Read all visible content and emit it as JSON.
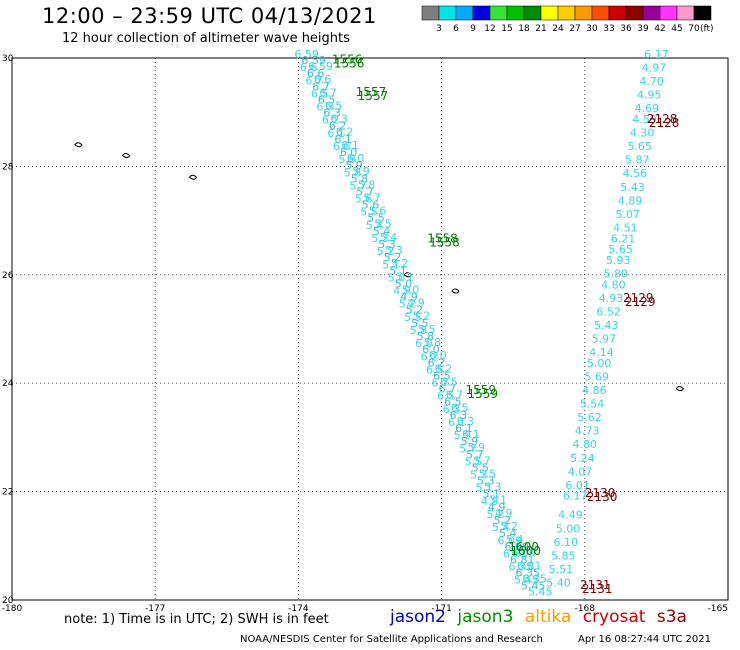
{
  "header": {
    "title": "12:00 – 23:59 UTC 04/13/2021",
    "subtitle": "12 hour collection of altimeter wave heights"
  },
  "colorbar": {
    "colors": [
      "#7f7f7f",
      "#00e6e6",
      "#00aaff",
      "#0000e6",
      "#33e633",
      "#00c000",
      "#008c00",
      "#ffff00",
      "#ffcc00",
      "#ff9900",
      "#ff4c00",
      "#cc0000",
      "#8c0000",
      "#990099",
      "#ff33ff",
      "#ff99cc",
      "#000000"
    ],
    "labels": [
      "3",
      "6",
      "9",
      "12",
      "15",
      "18",
      "21",
      "24",
      "27",
      "30",
      "33",
      "36",
      "39",
      "42",
      "45",
      "70"
    ],
    "unit": "(ft)"
  },
  "chart_data": {
    "type": "scatter",
    "xlim": [
      -180,
      -165
    ],
    "ylim": [
      20,
      30
    ],
    "x_ticks": [
      "-180",
      "-177",
      "-174",
      "-171",
      "-168",
      "-165"
    ],
    "y_ticks": [
      "20",
      "22",
      "24",
      "26",
      "28",
      "30"
    ],
    "grid": true,
    "pass_labels": [
      {
        "label": "1556",
        "x": -173.3,
        "y": 29.9
      },
      {
        "label": "1557",
        "x": -172.8,
        "y": 29.3
      },
      {
        "label": "1558",
        "x": -171.3,
        "y": 26.6
      },
      {
        "label": "1559",
        "x": -170.5,
        "y": 23.8
      },
      {
        "label": "1600",
        "x": -169.6,
        "y": 20.9
      },
      {
        "label": "2128",
        "x": -166.7,
        "y": 28.8
      },
      {
        "label": "2129",
        "x": -167.2,
        "y": 25.5
      },
      {
        "label": "2130",
        "x": -168.0,
        "y": 21.9
      },
      {
        "label": "2131",
        "x": -168.1,
        "y": 20.2
      }
    ],
    "track_east": [
      {
        "x": -166.5,
        "y": 30.0,
        "v": "6.17"
      },
      {
        "x": -166.55,
        "y": 29.75,
        "v": "4.97"
      },
      {
        "x": -166.6,
        "y": 29.5,
        "v": "4.70"
      },
      {
        "x": -166.65,
        "y": 29.25,
        "v": "4.95"
      },
      {
        "x": -166.7,
        "y": 29.0,
        "v": "4.69"
      },
      {
        "x": -166.75,
        "y": 28.8,
        "v": "4.59"
      },
      {
        "x": -166.8,
        "y": 28.55,
        "v": "4.30"
      },
      {
        "x": -166.85,
        "y": 28.3,
        "v": "5.65"
      },
      {
        "x": -166.9,
        "y": 28.05,
        "v": "5.87"
      },
      {
        "x": -166.95,
        "y": 27.8,
        "v": "4.56"
      },
      {
        "x": -167.0,
        "y": 27.55,
        "v": "5.43"
      },
      {
        "x": -167.05,
        "y": 27.3,
        "v": "4.89"
      },
      {
        "x": -167.1,
        "y": 27.05,
        "v": "5.07"
      },
      {
        "x": -167.15,
        "y": 26.8,
        "v": "4.51"
      },
      {
        "x": -167.2,
        "y": 26.6,
        "v": "6.21"
      },
      {
        "x": -167.25,
        "y": 26.4,
        "v": "5.65"
      },
      {
        "x": -167.3,
        "y": 26.2,
        "v": "5.93"
      },
      {
        "x": -167.35,
        "y": 25.95,
        "v": "5.80"
      },
      {
        "x": -167.4,
        "y": 25.75,
        "v": "4.80"
      },
      {
        "x": -167.45,
        "y": 25.5,
        "v": "4.93"
      },
      {
        "x": -167.5,
        "y": 25.25,
        "v": "6.52"
      },
      {
        "x": -167.55,
        "y": 25.0,
        "v": "5.43"
      },
      {
        "x": -167.6,
        "y": 24.75,
        "v": "5.97"
      },
      {
        "x": -167.65,
        "y": 24.5,
        "v": "4.14"
      },
      {
        "x": -167.7,
        "y": 24.3,
        "v": "5.00"
      },
      {
        "x": -167.75,
        "y": 24.05,
        "v": "5.69"
      },
      {
        "x": -167.8,
        "y": 23.8,
        "v": "4.86"
      },
      {
        "x": -167.85,
        "y": 23.55,
        "v": "5.54"
      },
      {
        "x": -167.9,
        "y": 23.3,
        "v": "5.62"
      },
      {
        "x": -167.95,
        "y": 23.05,
        "v": "4.73"
      },
      {
        "x": -168.0,
        "y": 22.8,
        "v": "4.80"
      },
      {
        "x": -168.05,
        "y": 22.55,
        "v": "5.24"
      },
      {
        "x": -168.1,
        "y": 22.3,
        "v": "4.07"
      },
      {
        "x": -168.15,
        "y": 22.05,
        "v": "6.01"
      },
      {
        "x": -168.2,
        "y": 21.85,
        "v": "6.17"
      },
      {
        "x": -168.3,
        "y": 21.5,
        "v": "4.49"
      },
      {
        "x": -168.35,
        "y": 21.25,
        "v": "5.00"
      },
      {
        "x": -168.4,
        "y": 21.0,
        "v": "6.10"
      },
      {
        "x": -168.45,
        "y": 20.75,
        "v": "5.85"
      },
      {
        "x": -168.5,
        "y": 20.5,
        "v": "5.51"
      },
      {
        "x": -168.55,
        "y": 20.25,
        "v": "5.40"
      }
    ],
    "track_west_start": {
      "x": -174.0,
      "y": 30.0
    },
    "track_west_end": {
      "x": -169.4,
      "y": 20.3
    },
    "track_west_values": [
      "6.59",
      "6.6",
      "6.7",
      "6.5",
      "6.3",
      "6.2",
      "6.1",
      "6.0",
      "5.9",
      "5.8",
      "5.7",
      "5.6",
      "5.5",
      "5.4",
      "5.3",
      "5.2",
      "5.1",
      "5.0",
      "4.9",
      "5.2",
      "5.5",
      "5.8",
      "6.0",
      "6.2",
      "6.5",
      "6.7",
      "6.5",
      "6.3",
      "6.1",
      "5.9",
      "5.7",
      "5.5",
      "5.3",
      "5.1",
      "4.9",
      "5.2",
      "5.4",
      "6.09",
      "6.81",
      "6.35",
      "5.45"
    ]
  },
  "note": "note: 1) Time is in UTC; 2) SWH is in feet",
  "legend": {
    "satellites": [
      {
        "name": "jason2",
        "color": "#0000cc"
      },
      {
        "name": "jason3",
        "color": "#008c00"
      },
      {
        "name": "altika",
        "color": "#ff9900"
      },
      {
        "name": "cryosat",
        "color": "#cc0000"
      },
      {
        "name": "s3a",
        "color": "#8c0000"
      }
    ]
  },
  "footer": {
    "left": "NOAA/NESDIS Center for Satellite Applications and Research",
    "right": "Apr 16 08:27:44 UTC 2021"
  }
}
